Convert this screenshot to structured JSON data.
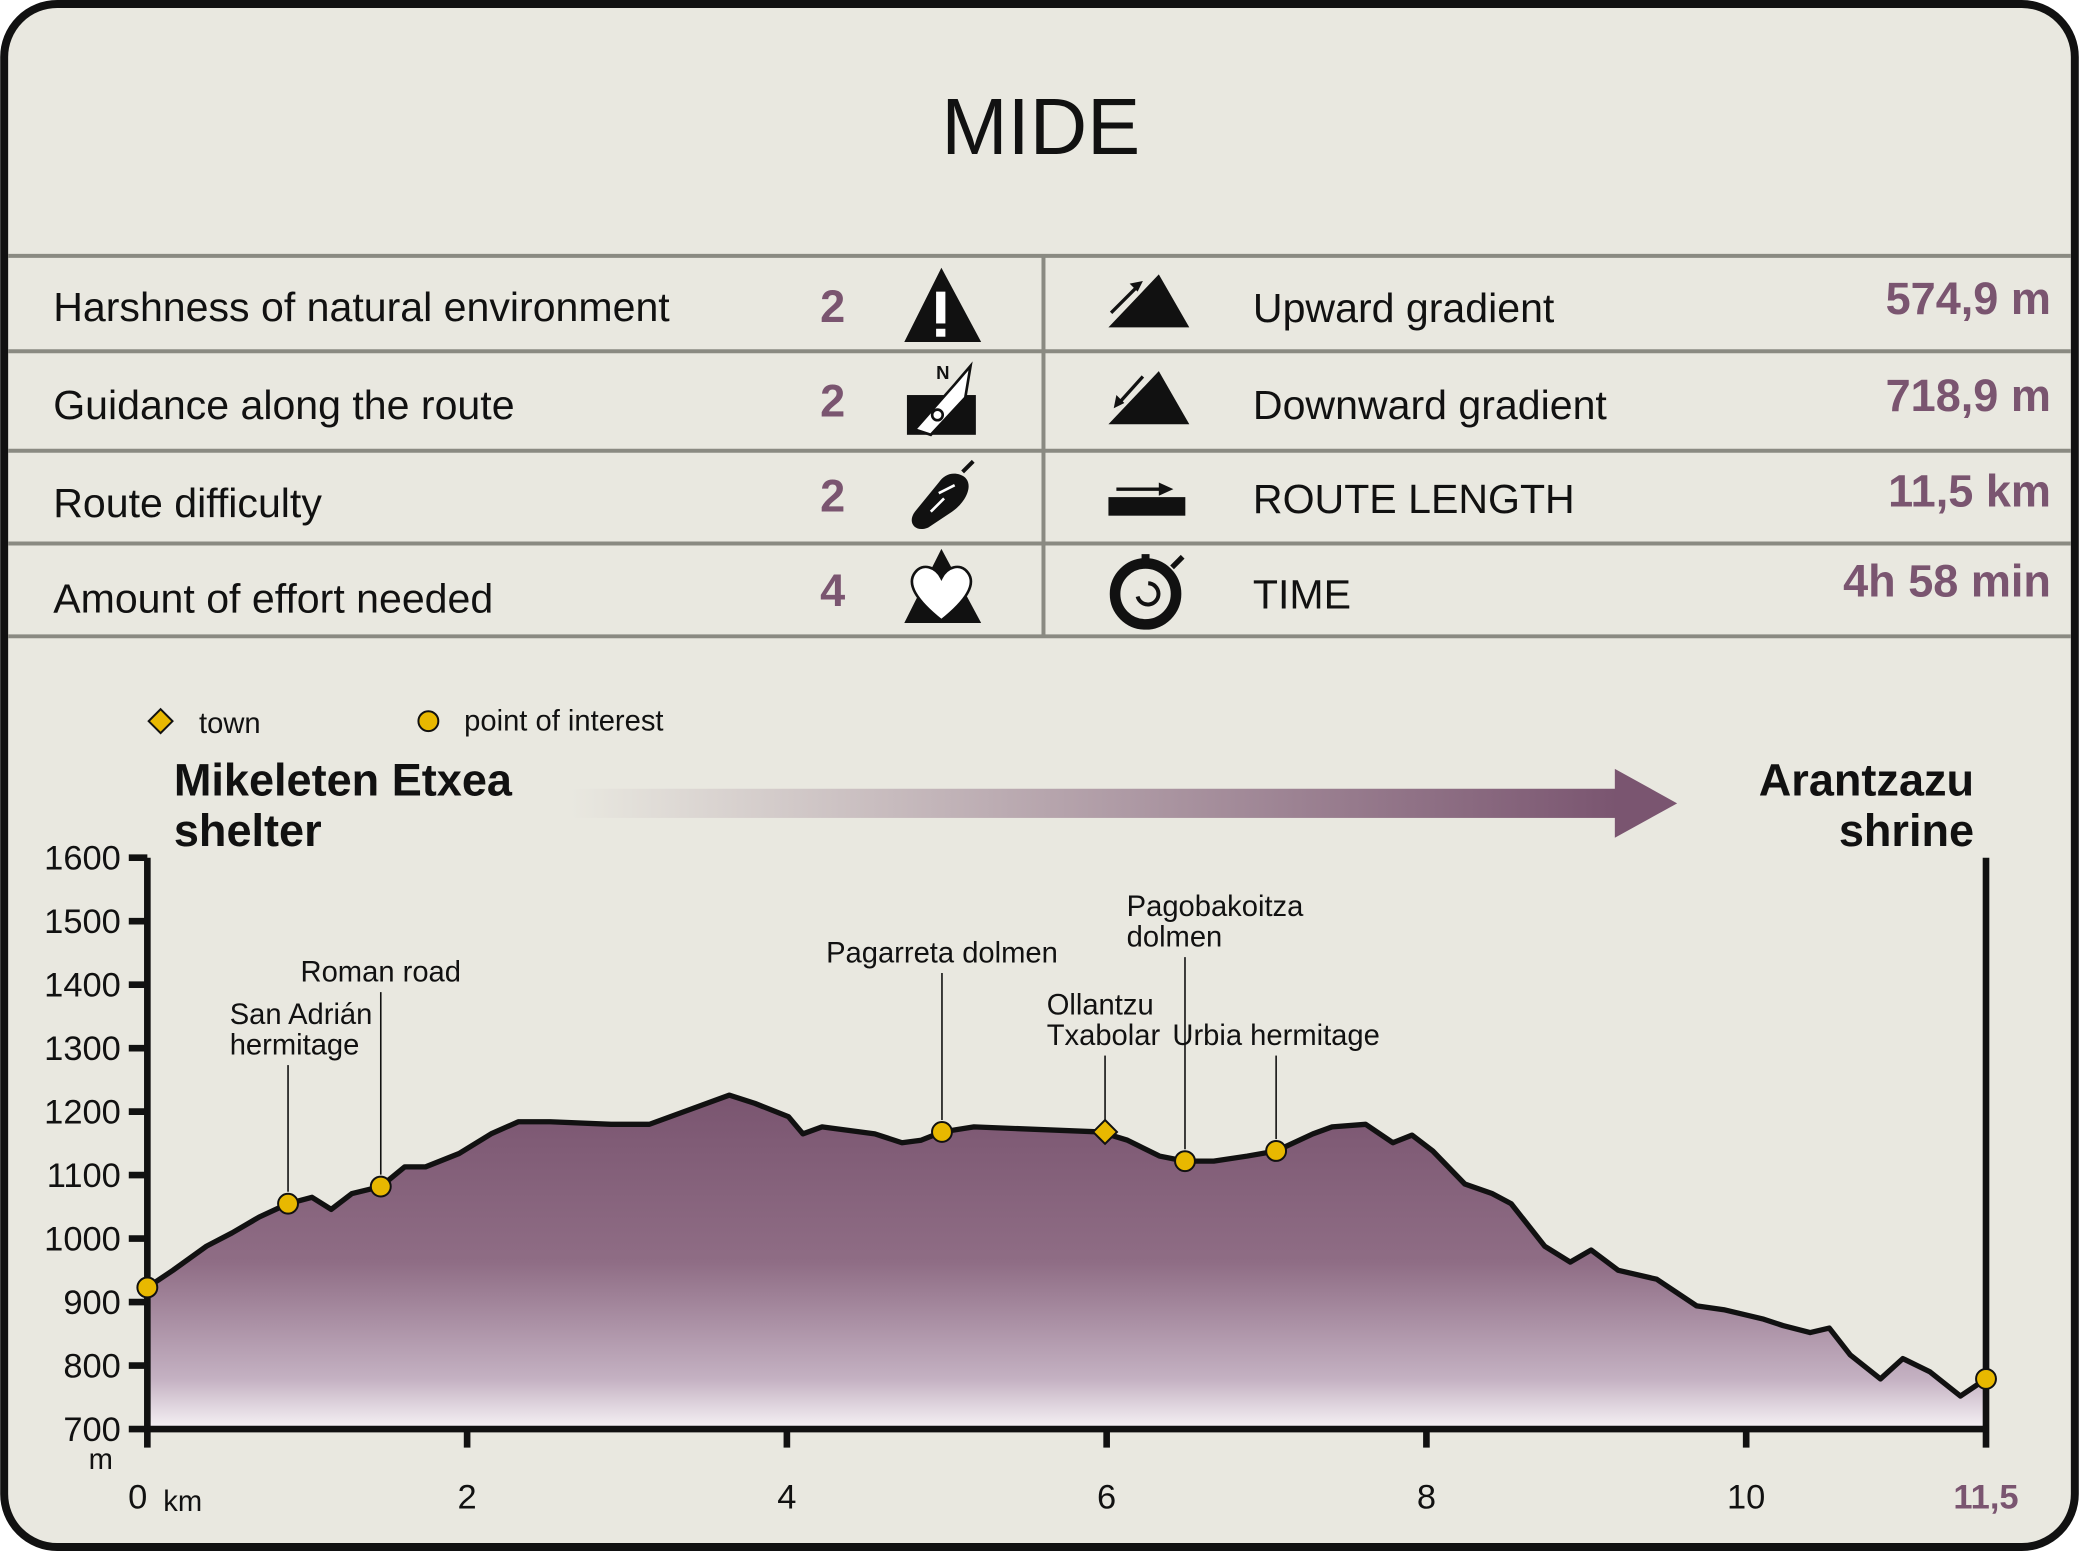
{
  "title": "MIDE",
  "mide_rows": [
    {
      "label": "Harshness of natural environment",
      "value": "2",
      "icon": "warning-mountain-icon"
    },
    {
      "label": "Guidance along the route",
      "value": "2",
      "icon": "compass-icon"
    },
    {
      "label": "Route difficulty",
      "value": "2",
      "icon": "footprint-icon"
    },
    {
      "label": "Amount of effort needed",
      "value": "4",
      "icon": "heart-mountain-icon"
    }
  ],
  "stats_rows": [
    {
      "label": "Upward gradient",
      "value": "574,9 m",
      "icon": "upward-gradient-icon"
    },
    {
      "label": "Downward gradient",
      "value": "718,9 m",
      "icon": "downward-gradient-icon"
    },
    {
      "label": "ROUTE LENGTH",
      "value": "11,5 km",
      "icon": "route-length-icon"
    },
    {
      "label": "TIME",
      "value": "4h 58 min",
      "icon": "stopwatch-icon"
    }
  ],
  "colors": {
    "accent": "#7a5570",
    "background": "#e9e8e0",
    "marker": "#e8b800",
    "rule": "#8a8a82"
  },
  "chart_data": {
    "type": "area",
    "title": "",
    "legend": [
      {
        "symbol": "diamond",
        "label": "town"
      },
      {
        "symbol": "circle",
        "label": "point of interest"
      }
    ],
    "start_label": [
      "Mikeleten Etxea",
      "shelter"
    ],
    "end_label": [
      "Arantzazu",
      "shrine"
    ],
    "xlabel": "km",
    "ylabel": "m",
    "xlim": [
      0,
      11.5
    ],
    "ylim": [
      700,
      1600
    ],
    "x_ticks": [
      0,
      2,
      4,
      6,
      8,
      10
    ],
    "x_tick_labels": [
      "0",
      "2",
      "4",
      "6",
      "8",
      "10"
    ],
    "x_end_label": "11,5",
    "y_ticks": [
      700,
      800,
      900,
      1000,
      1100,
      1200,
      1300,
      1400,
      1500,
      1600
    ],
    "y_tick_labels": [
      "700",
      "800",
      "900",
      "1000",
      "1100",
      "1200",
      "1300",
      "1400",
      "1500",
      "1600"
    ],
    "profile": {
      "x": [
        0,
        0.16,
        0.37,
        0.53,
        0.7,
        0.88,
        1.03,
        1.15,
        1.28,
        1.46,
        1.61,
        1.74,
        1.95,
        2.15,
        2.32,
        2.52,
        2.9,
        3.14,
        3.64,
        3.8,
        4.01,
        4.1,
        4.22,
        4.55,
        4.72,
        4.84,
        4.97,
        5.17,
        5.96,
        6.13,
        6.33,
        6.49,
        6.67,
        6.88,
        7.06,
        7.29,
        7.41,
        7.62,
        7.79,
        7.91,
        8.04,
        8.24,
        8.41,
        8.53,
        8.74,
        8.9,
        9.03,
        9.2,
        9.44,
        9.69,
        9.86,
        10.11,
        10.23,
        10.4,
        10.52,
        10.65,
        10.84,
        10.98,
        11.15,
        11.34,
        11.5
      ],
      "y": [
        923,
        950,
        988,
        1009,
        1034,
        1055,
        1065,
        1046,
        1071,
        1082,
        1113,
        1113,
        1134,
        1165,
        1184,
        1184,
        1180,
        1180,
        1226,
        1213,
        1192,
        1165,
        1176,
        1165,
        1151,
        1155,
        1168,
        1176,
        1168,
        1155,
        1130,
        1122,
        1122,
        1130,
        1138,
        1165,
        1176,
        1180,
        1151,
        1163,
        1138,
        1086,
        1071,
        1055,
        988,
        963,
        982,
        950,
        936,
        894,
        888,
        873,
        863,
        852,
        859,
        817,
        779,
        811,
        790,
        752,
        779
      ]
    },
    "points": [
      {
        "name": "",
        "type": "poi",
        "x": 0,
        "y": 923
      },
      {
        "name": [
          "San Adrián",
          "hermitage"
        ],
        "type": "poi",
        "x": 0.88,
        "y": 1055,
        "label_elev": 1290
      },
      {
        "name": [
          "Roman road"
        ],
        "type": "poi",
        "x": 1.46,
        "y": 1082,
        "label_elev": 1405
      },
      {
        "name": [
          "Pagarreta dolmen"
        ],
        "type": "poi",
        "x": 4.97,
        "y": 1168,
        "label_elev": 1435
      },
      {
        "name": [
          "Ollantzu",
          "Txabolar"
        ],
        "type": "town",
        "x": 5.99,
        "y": 1168,
        "label_elev": 1305
      },
      {
        "name": [
          "Pagobakoitza",
          "dolmen"
        ],
        "type": "poi",
        "x": 6.49,
        "y": 1122,
        "label_elev": 1460
      },
      {
        "name": [
          "Urbia hermitage"
        ],
        "type": "poi",
        "x": 7.06,
        "y": 1138,
        "label_elev": 1305
      },
      {
        "name": "",
        "type": "poi",
        "x": 11.5,
        "y": 779
      }
    ]
  }
}
